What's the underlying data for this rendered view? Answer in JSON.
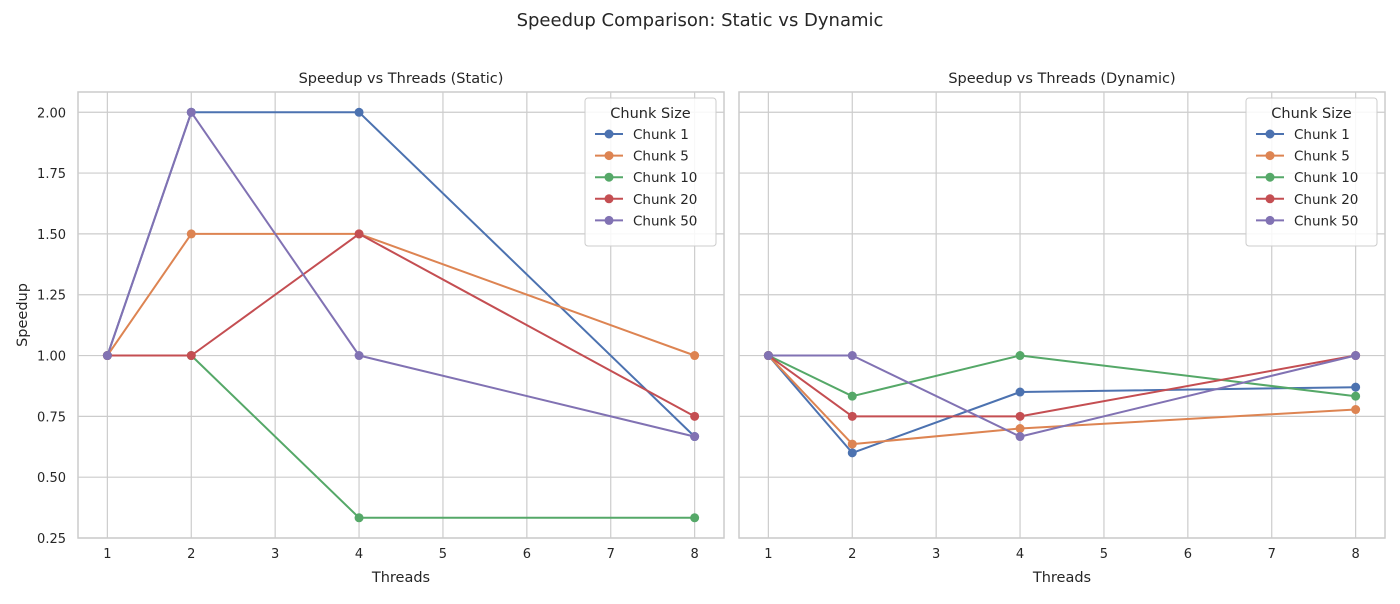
{
  "figure_title": "Speedup Comparison: Static vs Dynamic",
  "colors": {
    "series": [
      "#4c72b0",
      "#dd8452",
      "#55a868",
      "#c44e52",
      "#8172b3"
    ],
    "grid": "#cccccc",
    "axes_edge": "#cccccc",
    "background": "#ffffff"
  },
  "chart_data": [
    {
      "type": "line",
      "title": "Speedup vs Threads (Static)",
      "xlabel": "Threads",
      "ylabel": "Speedup",
      "x_ticks": [
        1,
        2,
        3,
        4,
        5,
        6,
        7,
        8
      ],
      "y_ticks": [
        "0.25",
        "0.50",
        "0.75",
        "1.00",
        "1.25",
        "1.50",
        "1.75",
        "2.00"
      ],
      "xlim": [
        0.65,
        8.35
      ],
      "ylim": [
        0.25,
        2.0833
      ],
      "grid": true,
      "legend_title": "Chunk Size",
      "legend_position": "top-right",
      "x": [
        1,
        2,
        4,
        8
      ],
      "series": [
        {
          "name": "Chunk 1",
          "values": [
            1.0,
            2.0,
            2.0,
            0.667
          ]
        },
        {
          "name": "Chunk 5",
          "values": [
            1.0,
            1.5,
            1.5,
            1.0
          ]
        },
        {
          "name": "Chunk 10",
          "values": [
            1.0,
            1.0,
            0.333,
            0.333
          ]
        },
        {
          "name": "Chunk 20",
          "values": [
            1.0,
            1.0,
            1.5,
            0.75
          ]
        },
        {
          "name": "Chunk 50",
          "values": [
            1.0,
            2.0,
            1.0,
            0.667
          ]
        }
      ]
    },
    {
      "type": "line",
      "title": "Speedup vs Threads (Dynamic)",
      "xlabel": "Threads",
      "ylabel": "",
      "x_ticks": [
        1,
        2,
        3,
        4,
        5,
        6,
        7,
        8
      ],
      "y_ticks": [],
      "xlim": [
        0.65,
        8.35
      ],
      "ylim": [
        0.25,
        2.0833
      ],
      "grid": true,
      "legend_title": "Chunk Size",
      "legend_position": "top-right",
      "x": [
        1,
        2,
        4,
        8
      ],
      "series": [
        {
          "name": "Chunk 1",
          "values": [
            1.0,
            0.6,
            0.85,
            0.87
          ]
        },
        {
          "name": "Chunk 5",
          "values": [
            1.0,
            0.636,
            0.7,
            0.778
          ]
        },
        {
          "name": "Chunk 10",
          "values": [
            1.0,
            0.833,
            1.0,
            0.833
          ]
        },
        {
          "name": "Chunk 20",
          "values": [
            1.0,
            0.75,
            0.75,
            1.0
          ]
        },
        {
          "name": "Chunk 50",
          "values": [
            1.0,
            1.0,
            0.667,
            1.0
          ]
        }
      ]
    }
  ]
}
